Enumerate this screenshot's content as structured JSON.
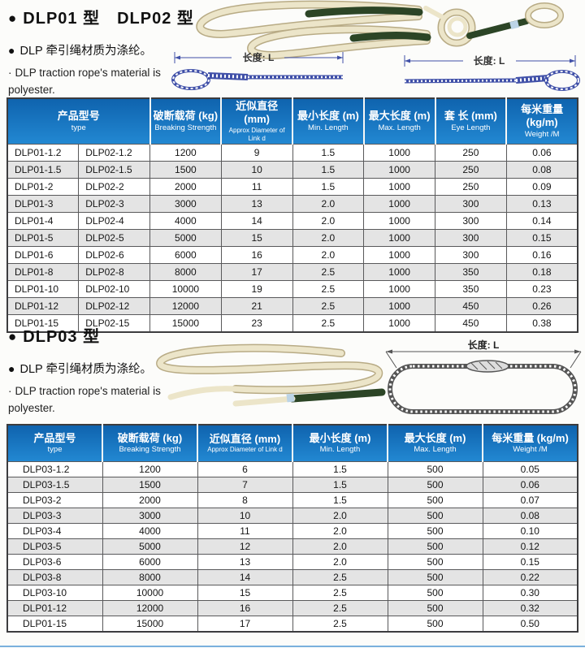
{
  "colors": {
    "table_header_blue_top": "#0f63ae",
    "table_header_blue_bottom": "#2288d2",
    "row_alt_gray": "#e4e4e4",
    "diagram_blue": "#4050a8",
    "diagram_dark": "#555555",
    "rope_cream": "#ece5c9",
    "rope_sleeve_green": "#2c4526",
    "bottom_rule_blue": "#7ab0dd"
  },
  "section1": {
    "bullet": "●",
    "title": "DLP01 型　DLP02 型",
    "material_cn": "DLP 牵引绳材质为涤纶。",
    "en_dot": "·",
    "material_en": "DLP traction rope's material is polyester.",
    "diagram1_dim_label": "长度: L",
    "diagram2_dim_label": "长度: L",
    "table": {
      "headers": [
        {
          "cn": "产品型号",
          "en": "type"
        },
        {
          "cn": "破断载荷 (kg)",
          "en": "Breaking Strength"
        },
        {
          "cn": "近似直径 (mm)",
          "en": "Approx Diameter of Link d"
        },
        {
          "cn": "最小长度 (m)",
          "en": "Min. Length"
        },
        {
          "cn": "最大长度 (m)",
          "en": "Max. Length"
        },
        {
          "cn": "套 长 (mm)",
          "en": "Eye Length"
        },
        {
          "cn": "每米重量 (kg/m)",
          "en": "Weight /M"
        }
      ],
      "rows": [
        [
          "DLP01-1.2",
          "DLP02-1.2",
          "1200",
          "9",
          "1.5",
          "1000",
          "250",
          "0.06"
        ],
        [
          "DLP01-1.5",
          "DLP02-1.5",
          "1500",
          "10",
          "1.5",
          "1000",
          "250",
          "0.08"
        ],
        [
          "DLP01-2",
          "DLP02-2",
          "2000",
          "11",
          "1.5",
          "1000",
          "250",
          "0.09"
        ],
        [
          "DLP01-3",
          "DLP02-3",
          "3000",
          "13",
          "2.0",
          "1000",
          "300",
          "0.13"
        ],
        [
          "DLP01-4",
          "DLP02-4",
          "4000",
          "14",
          "2.0",
          "1000",
          "300",
          "0.14"
        ],
        [
          "DLP01-5",
          "DLP02-5",
          "5000",
          "15",
          "2.0",
          "1000",
          "300",
          "0.15"
        ],
        [
          "DLP01-6",
          "DLP02-6",
          "6000",
          "16",
          "2.0",
          "1000",
          "300",
          "0.16"
        ],
        [
          "DLP01-8",
          "DLP02-8",
          "8000",
          "17",
          "2.5",
          "1000",
          "350",
          "0.18"
        ],
        [
          "DLP01-10",
          "DLP02-10",
          "10000",
          "19",
          "2.5",
          "1000",
          "350",
          "0.23"
        ],
        [
          "DLP01-12",
          "DLP02-12",
          "12000",
          "21",
          "2.5",
          "1000",
          "450",
          "0.26"
        ],
        [
          "DLP01-15",
          "DLP02-15",
          "15000",
          "23",
          "2.5",
          "1000",
          "450",
          "0.38"
        ]
      ]
    }
  },
  "section2": {
    "bullet": "●",
    "title": "DLP03 型",
    "material_cn": "DLP 牵引绳材质为涤纶。",
    "en_dot": "·",
    "material_en": "DLP traction rope's material is polyester.",
    "diagram_dim_label": "长度: L",
    "table": {
      "headers": [
        {
          "cn": "产品型号",
          "en": "type"
        },
        {
          "cn": "破断载荷 (kg)",
          "en": "Breaking Strength"
        },
        {
          "cn": "近似直径 (mm)",
          "en": "Approx Diameter of Link d"
        },
        {
          "cn": "最小长度 (m)",
          "en": "Min. Length"
        },
        {
          "cn": "最大长度 (m)",
          "en": "Max. Length"
        },
        {
          "cn": "每米重量 (kg/m)",
          "en": "Weight /M"
        }
      ],
      "rows": [
        [
          "DLP03-1.2",
          "1200",
          "6",
          "1.5",
          "500",
          "0.05"
        ],
        [
          "DLP03-1.5",
          "1500",
          "7",
          "1.5",
          "500",
          "0.06"
        ],
        [
          "DLP03-2",
          "2000",
          "8",
          "1.5",
          "500",
          "0.07"
        ],
        [
          "DLP03-3",
          "3000",
          "10",
          "2.0",
          "500",
          "0.08"
        ],
        [
          "DLP03-4",
          "4000",
          "11",
          "2.0",
          "500",
          "0.10"
        ],
        [
          "DLP03-5",
          "5000",
          "12",
          "2.0",
          "500",
          "0.12"
        ],
        [
          "DLP03-6",
          "6000",
          "13",
          "2.0",
          "500",
          "0.15"
        ],
        [
          "DLP03-8",
          "8000",
          "14",
          "2.5",
          "500",
          "0.22"
        ],
        [
          "DLP03-10",
          "10000",
          "15",
          "2.5",
          "500",
          "0.30"
        ],
        [
          "DLP01-12",
          "12000",
          "16",
          "2.5",
          "500",
          "0.32"
        ],
        [
          "DLP01-15",
          "15000",
          "17",
          "2.5",
          "500",
          "0.50"
        ]
      ]
    }
  }
}
